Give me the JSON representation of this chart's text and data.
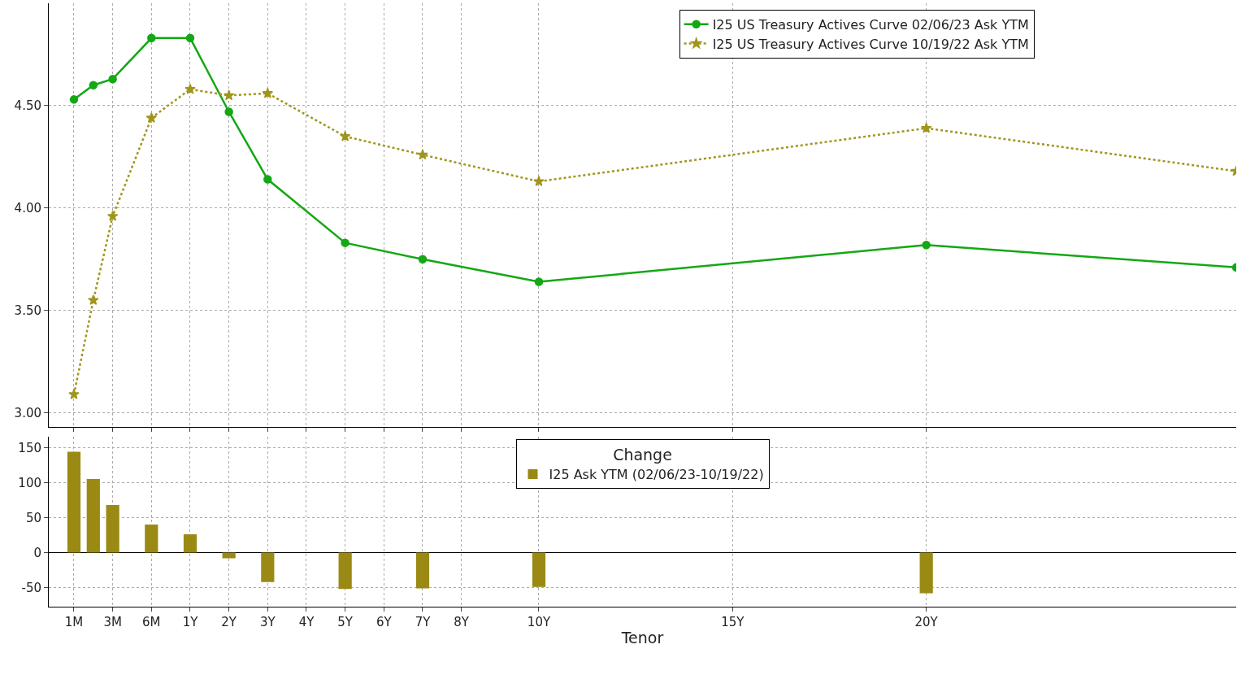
{
  "chart_data": [
    {
      "type": "line",
      "categories": [
        "1M",
        null,
        "3M",
        null,
        "6M",
        null,
        "1Y",
        null,
        "2Y",
        null,
        "3Y",
        null,
        "4Y",
        null,
        "5Y",
        null,
        "6Y",
        null,
        "7Y",
        null,
        "8Y",
        null,
        null,
        null,
        "10Y",
        null,
        null,
        null,
        null,
        null,
        null,
        null,
        null,
        null,
        "15Y",
        null,
        null,
        null,
        null,
        null,
        null,
        null,
        null,
        null,
        "20Y",
        null,
        null,
        null,
        null,
        null,
        null,
        null,
        null,
        null,
        null,
        null,
        null,
        null,
        null,
        null,
        null
      ],
      "ylim": [
        2.93,
        5.0
      ],
      "yticks": [
        {
          "value": 3.0,
          "label": "3.00"
        },
        {
          "value": 3.5,
          "label": "3.50"
        },
        {
          "value": 4.0,
          "label": "4.00"
        },
        {
          "value": 4.5,
          "label": "4.50"
        }
      ],
      "tick_labels": "y",
      "grid": true,
      "legend": "top right",
      "series": [
        {
          "name": "I25 US Treasury Actives Curve 02/06/23 Ask YTM",
          "color": "#14a814",
          "marker": "circle",
          "line_style": "solid",
          "values": [
            4.53,
            4.6,
            4.63,
            null,
            4.83,
            null,
            4.83,
            null,
            4.47,
            null,
            4.14,
            null,
            null,
            null,
            3.83,
            null,
            null,
            null,
            3.75,
            null,
            null,
            null,
            null,
            null,
            3.64,
            null,
            null,
            null,
            null,
            null,
            null,
            null,
            null,
            null,
            null,
            null,
            null,
            null,
            null,
            null,
            null,
            null,
            null,
            null,
            3.82,
            null,
            null,
            null,
            null,
            null,
            null,
            null,
            null,
            null,
            null,
            null,
            null,
            null,
            null,
            null,
            3.71
          ]
        },
        {
          "name": "I25 US Treasury Actives Curve 10/19/22 Ask YTM",
          "color": "#a0961c",
          "marker": "star",
          "line_style": "dotted",
          "values": [
            3.09,
            3.55,
            3.96,
            null,
            4.44,
            null,
            4.58,
            null,
            4.55,
            null,
            4.56,
            null,
            null,
            null,
            4.35,
            null,
            null,
            null,
            4.26,
            null,
            null,
            null,
            null,
            null,
            4.13,
            null,
            null,
            null,
            null,
            null,
            null,
            null,
            null,
            null,
            null,
            null,
            null,
            null,
            null,
            null,
            null,
            null,
            null,
            null,
            4.39,
            null,
            null,
            null,
            null,
            null,
            null,
            null,
            null,
            null,
            null,
            null,
            null,
            null,
            null,
            null,
            4.18
          ]
        }
      ]
    },
    {
      "type": "bar",
      "categories": [
        "1M",
        null,
        "3M",
        null,
        "6M",
        null,
        "1Y",
        null,
        "2Y",
        null,
        "3Y",
        null,
        "4Y",
        null,
        "5Y",
        null,
        "6Y",
        null,
        "7Y",
        null,
        "8Y",
        null,
        null,
        null,
        "10Y",
        null,
        null,
        null,
        null,
        null,
        null,
        null,
        null,
        null,
        "15Y",
        null,
        null,
        null,
        null,
        null,
        null,
        null,
        null,
        null,
        "20Y",
        null,
        null,
        null,
        null,
        null,
        null,
        null,
        null,
        null,
        null,
        null,
        null,
        null,
        null,
        null,
        null
      ],
      "ylim": [
        -77,
        165
      ],
      "yticks": [
        -50,
        0,
        50,
        100,
        150
      ],
      "xlabel": "Tenor",
      "grid": true,
      "legend": "top",
      "legend_title": "Change",
      "series": [
        {
          "name": "I25 Ask YTM (02/06/23-10/19/22)",
          "color": "#9a8a14",
          "values": [
            144,
            105,
            68,
            null,
            40,
            null,
            26,
            null,
            -8,
            null,
            -42,
            null,
            null,
            null,
            -52,
            null,
            null,
            null,
            -51,
            null,
            null,
            null,
            null,
            null,
            -49,
            null,
            null,
            null,
            null,
            null,
            null,
            null,
            null,
            null,
            null,
            null,
            null,
            null,
            null,
            null,
            null,
            null,
            null,
            null,
            -58,
            null,
            null,
            null,
            null,
            null,
            null,
            null,
            null,
            null,
            null,
            null,
            null,
            null,
            null,
            null,
            null
          ]
        }
      ]
    }
  ]
}
